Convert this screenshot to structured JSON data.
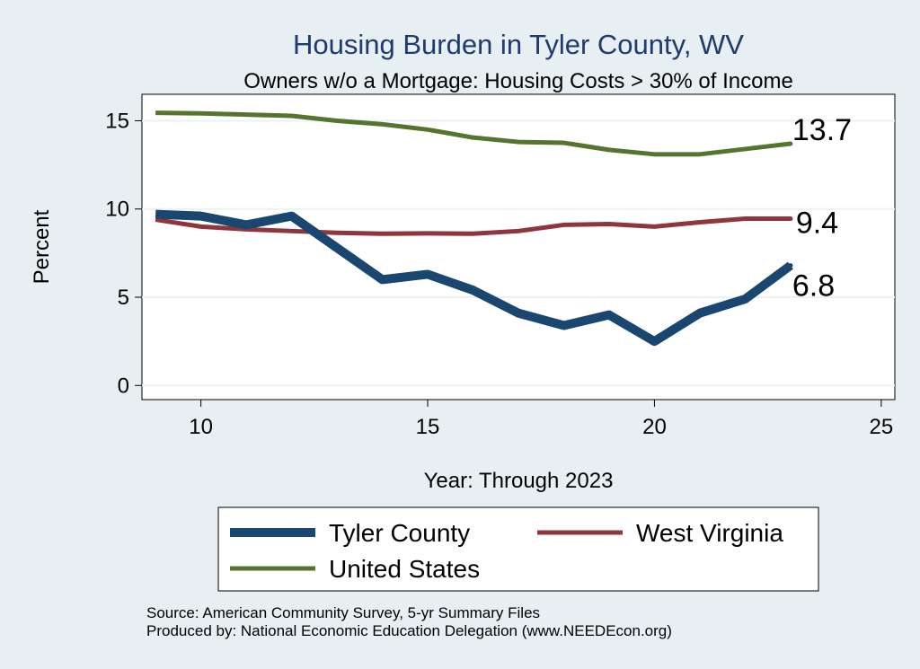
{
  "chart_data": {
    "type": "line",
    "title": "Housing Burden in Tyler County, WV",
    "subtitle": "Owners w/o a Mortgage: Housing Costs > 30% of Income",
    "xlabel": "Year: Through 2023",
    "ylabel": "Percent",
    "xlim": [
      8.7,
      25.3
    ],
    "ylim": [
      -0.8,
      16.5
    ],
    "xticks": [
      10,
      15,
      20,
      25
    ],
    "yticks": [
      0,
      5,
      10,
      15
    ],
    "grid": true,
    "legend_position": "bottom",
    "series": [
      {
        "name": "Tyler County",
        "color": "#1a476f",
        "x": [
          9,
          10,
          11,
          12,
          13,
          14,
          15,
          16,
          17,
          18,
          19,
          20,
          21,
          22,
          23
        ],
        "values": [
          9.7,
          9.6,
          9.1,
          9.6,
          7.8,
          6.0,
          6.3,
          5.4,
          4.1,
          3.4,
          4.0,
          2.5,
          4.1,
          4.9,
          6.8
        ],
        "end_label": "6.8"
      },
      {
        "name": "West Virginia",
        "color": "#90353b",
        "x": [
          9,
          10,
          11,
          12,
          13,
          14,
          15,
          16,
          17,
          18,
          19,
          20,
          21,
          22,
          23
        ],
        "values": [
          9.4,
          9.0,
          8.85,
          8.75,
          8.65,
          8.6,
          8.62,
          8.6,
          8.75,
          9.1,
          9.15,
          9.0,
          9.25,
          9.45,
          9.45
        ],
        "end_label": "9.4"
      },
      {
        "name": "United States",
        "color": "#55752f",
        "x": [
          9,
          10,
          11,
          12,
          13,
          14,
          15,
          16,
          17,
          18,
          19,
          20,
          21,
          22,
          23
        ],
        "values": [
          15.45,
          15.42,
          15.35,
          15.28,
          15.0,
          14.8,
          14.5,
          14.05,
          13.8,
          13.75,
          13.35,
          13.1,
          13.1,
          13.4,
          13.7
        ],
        "end_label": "13.7"
      }
    ]
  },
  "source": {
    "line1": "Source: American Community Survey, 5-yr Summary Files",
    "line2": "Produced by: National Economic Education Delegation (www.NEEDEcon.org)"
  }
}
